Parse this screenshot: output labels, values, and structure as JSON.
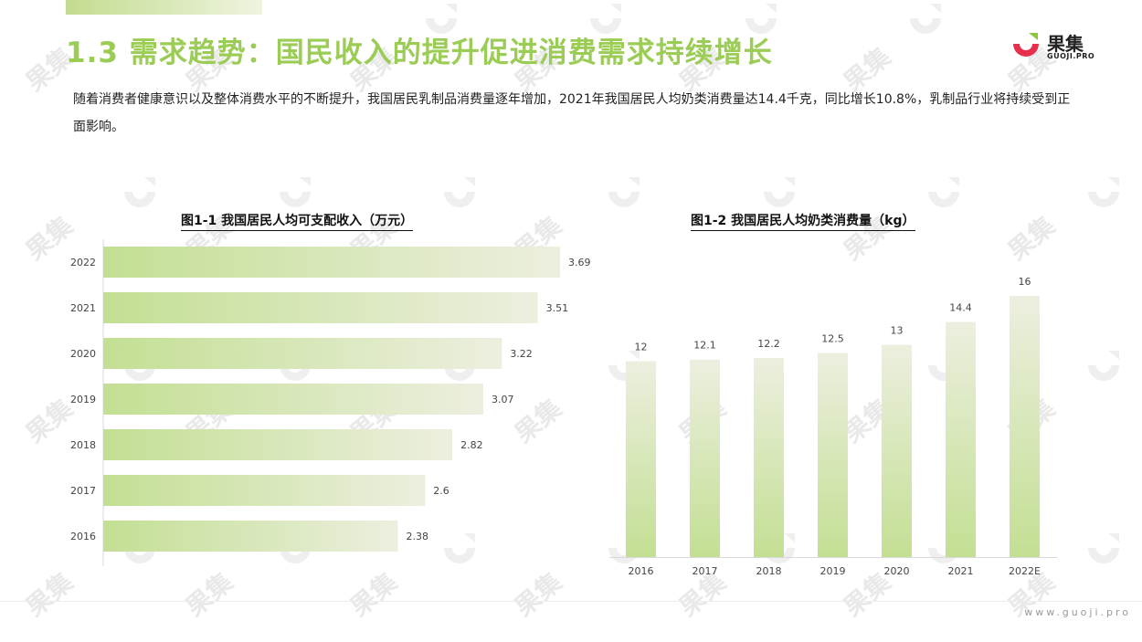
{
  "page": {
    "title": "1.3 需求趋势：国民收入的提升促进消费需求持续增长",
    "intro": "随着消费者健康意识以及整体消费水平的不断提升，我国居民乳制品消费量逐年增加，2021年我国居民人均奶类消费量达14.4千克，同比增长10.8%，乳制品行业将持续受到正面影响。",
    "logo_text": "果集",
    "logo_sub": "GUOJI.PRO",
    "footer_url": "www.guoji.pro",
    "watermark_text": "果集"
  },
  "colors": {
    "title_green": "#9bcc55",
    "bar_start": "#c3df93",
    "bar_end": "#ecefdf",
    "logo_red": "#e8304d",
    "logo_green": "#8cc63f"
  },
  "chart_data": [
    {
      "type": "bar",
      "orientation": "horizontal",
      "title": "图1-1 我国居民人均可支配收入（万元）",
      "categories": [
        "2022",
        "2021",
        "2020",
        "2019",
        "2018",
        "2017",
        "2016"
      ],
      "values": [
        3.69,
        3.51,
        3.22,
        3.07,
        2.82,
        2.6,
        2.38
      ],
      "value_labels": [
        "3.69",
        "3.51",
        "3.22",
        "3.07",
        "2.82",
        "2.6",
        "2.38"
      ],
      "xlim": [
        0,
        3.69
      ],
      "grid": false
    },
    {
      "type": "bar",
      "orientation": "vertical",
      "title": "图1-2 我国居民人均奶类消费量（kg）",
      "categories": [
        "2016",
        "2017",
        "2018",
        "2019",
        "2020",
        "2021",
        "2022E"
      ],
      "values": [
        12,
        12.1,
        12.2,
        12.5,
        13,
        14.4,
        16
      ],
      "value_labels": [
        "12",
        "12.1",
        "12.2",
        "12.5",
        "13",
        "14.4",
        "16"
      ],
      "ylim": [
        0,
        16
      ],
      "grid": false
    }
  ]
}
